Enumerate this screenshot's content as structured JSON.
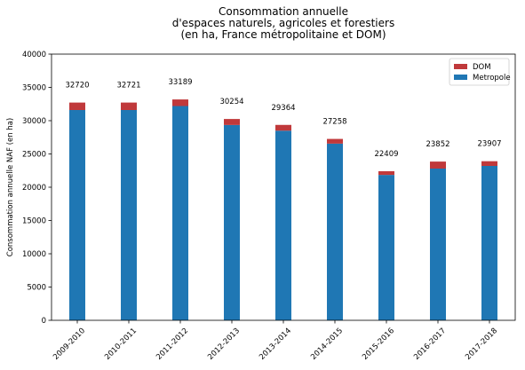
{
  "chart_data": {
    "type": "bar",
    "stacked": true,
    "title": [
      "Consommation annuelle",
      "d'espaces naturels, agricoles et forestiers",
      "(en ha, France métropolitaine et DOM)"
    ],
    "xlabel": "",
    "ylabel": "Consommation annuelle NAF (en ha)",
    "ylim": [
      0,
      40000
    ],
    "yticks": [
      0,
      5000,
      10000,
      15000,
      20000,
      25000,
      30000,
      35000,
      40000
    ],
    "categories": [
      "2009-2010",
      "2010-2011",
      "2011-2012",
      "2012-2013",
      "2013-2014",
      "2014-2015",
      "2015-2016",
      "2016-2017",
      "2017-2018"
    ],
    "series": [
      {
        "name": "Metropole",
        "color": "#1f77b4",
        "values": [
          31600,
          31600,
          32200,
          29350,
          28500,
          26550,
          21850,
          22800,
          23200
        ]
      },
      {
        "name": "DOM",
        "color": "#c0393b",
        "values": [
          1120,
          1121,
          989,
          904,
          864,
          708,
          559,
          1052,
          707
        ]
      }
    ],
    "totals": [
      "32720",
      "32721",
      "33189",
      "30254",
      "29364",
      "27258",
      "22409",
      "23852",
      "23907"
    ],
    "legend": {
      "position": "top-right",
      "entries": [
        "DOM",
        "Metropole"
      ]
    },
    "grid": false
  }
}
